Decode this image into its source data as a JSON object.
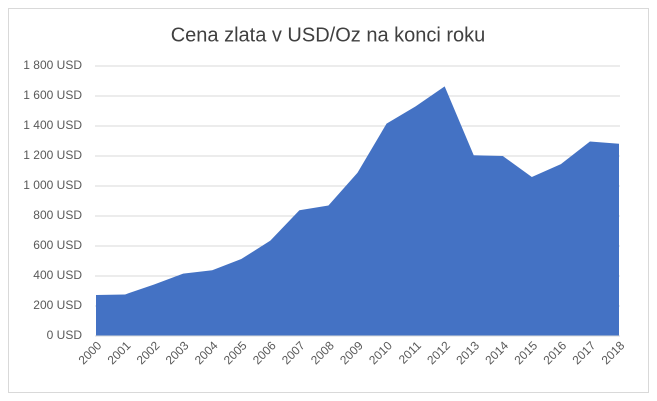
{
  "chart_data": {
    "type": "area",
    "title": "Cena zlata v USD/Oz na konci roku",
    "categories": [
      "2000",
      "2001",
      "2002",
      "2003",
      "2004",
      "2005",
      "2006",
      "2007",
      "2008",
      "2009",
      "2010",
      "2011",
      "2012",
      "2013",
      "2014",
      "2015",
      "2016",
      "2017",
      "2018"
    ],
    "values": [
      273,
      277,
      343,
      416,
      438,
      513,
      636,
      838,
      870,
      1088,
      1416,
      1531,
      1664,
      1205,
      1200,
      1060,
      1146,
      1297,
      1282
    ],
    "color": "#4472c4",
    "ylim": [
      0,
      1800
    ],
    "yticks": [
      {
        "value": 0,
        "label": "0 USD"
      },
      {
        "value": 200,
        "label": "200 USD"
      },
      {
        "value": 400,
        "label": "400 USD"
      },
      {
        "value": 600,
        "label": "600 USD"
      },
      {
        "value": 800,
        "label": "800 USD"
      },
      {
        "value": 1000,
        "label": "1 000 USD"
      },
      {
        "value": 1200,
        "label": "1 200 USD"
      },
      {
        "value": 1400,
        "label": "1 400 USD"
      },
      {
        "value": 1600,
        "label": "1 600 USD"
      },
      {
        "value": 1800,
        "label": "1 800 USD"
      }
    ],
    "grid": true
  }
}
